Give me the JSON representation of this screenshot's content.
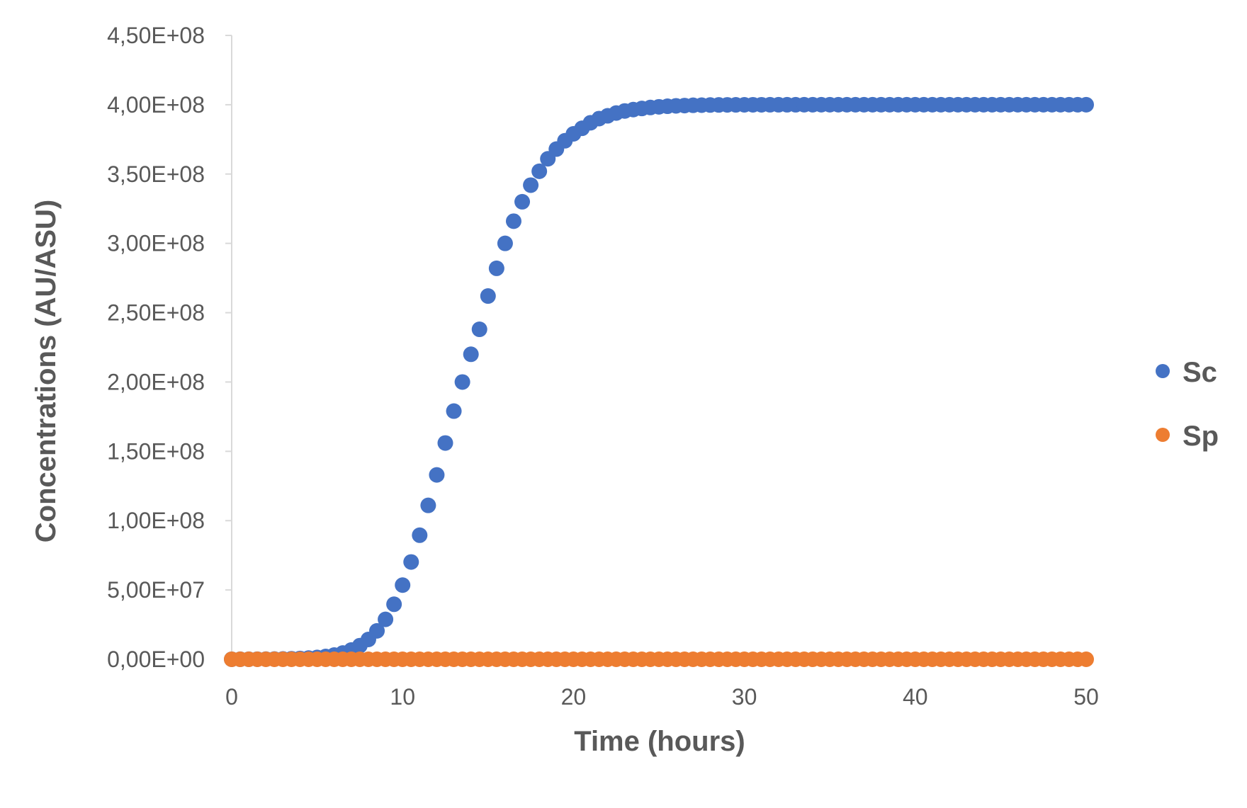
{
  "chart_data": {
    "type": "scatter",
    "title": "",
    "xlabel": "Time (hours)",
    "ylabel": "Concentrations (AU/ASU)",
    "xlim": [
      0,
      50
    ],
    "ylim": [
      0,
      450000000
    ],
    "x_ticks": [
      0,
      10,
      20,
      30,
      40,
      50
    ],
    "x_tick_labels": [
      "0",
      "10",
      "20",
      "30",
      "40",
      "50"
    ],
    "y_ticks": [
      0,
      50000000,
      100000000,
      150000000,
      200000000,
      250000000,
      300000000,
      350000000,
      400000000,
      450000000
    ],
    "y_tick_labels": [
      "0,00E+00",
      "5,00E+07",
      "1,00E+08",
      "1,50E+08",
      "2,00E+08",
      "2,50E+08",
      "3,00E+08",
      "3,50E+08",
      "4,00E+08",
      "4,50E+08"
    ],
    "grid": false,
    "legend_position": "right",
    "series": [
      {
        "name": "Sc",
        "color": "#4472C4",
        "x": [
          0.0,
          0.5,
          1.0,
          1.5,
          2.0,
          2.5,
          3.0,
          3.5,
          4.0,
          4.5,
          5.0,
          5.5,
          6.0,
          6.5,
          7.0,
          7.5,
          8.0,
          8.5,
          9.0,
          9.5,
          10.0,
          10.5,
          11.0,
          11.5,
          12.0,
          12.5,
          13.0,
          13.5,
          14.0,
          14.5,
          15.0,
          15.5,
          16.0,
          16.5,
          17.0,
          17.5,
          18.0,
          18.5,
          19.0,
          19.5,
          20.0,
          20.5,
          21.0,
          21.5,
          22.0,
          22.5,
          23.0,
          23.5,
          24.0,
          24.5,
          25.0,
          25.5,
          26.0,
          26.5,
          27.0,
          27.5,
          28.0,
          28.5,
          29.0,
          29.5,
          30.0,
          30.5,
          31.0,
          31.5,
          32.0,
          32.5,
          33.0,
          33.5,
          34.0,
          34.5,
          35.0,
          35.5,
          36.0,
          36.5,
          37.0,
          37.5,
          38.0,
          38.5,
          39.0,
          39.5,
          40.0,
          40.5,
          41.0,
          41.5,
          42.0,
          42.5,
          43.0,
          43.5,
          44.0,
          44.5,
          45.0,
          45.5,
          46.0,
          46.5,
          47.0,
          47.5,
          48.0,
          48.5,
          49.0,
          49.5,
          50.0
        ],
        "y": [
          23000,
          34000,
          51000,
          78000,
          117000,
          176000,
          265000,
          399000,
          600000,
          902000,
          1350000,
          2030000,
          3040000,
          4530000,
          6710000,
          9860000,
          14300000,
          20500000,
          28800000,
          39700000,
          53500000,
          70200000,
          89500000,
          111000000,
          133000000,
          156000000,
          179000000,
          200000000,
          220000000,
          238000000,
          262000000,
          282000000,
          300000000,
          316000000,
          330000000,
          342000000,
          352000000,
          361000000,
          368000000,
          374000000,
          379000000,
          383000000,
          387000000,
          390000000,
          392000000,
          394000000,
          395500000,
          396500000,
          397300000,
          398000000,
          398500000,
          398900000,
          399200000,
          399400000,
          399600000,
          399700000,
          399800000,
          399850000,
          399900000,
          399930000,
          399950000,
          399965000,
          399975000,
          399982000,
          399987000,
          399990000,
          399993000,
          399995000,
          399996000,
          399997000,
          399998000,
          399998000,
          399999000,
          399999000,
          399999000,
          400000000,
          400000000,
          400000000,
          400000000,
          400000000,
          400000000,
          400000000,
          400000000,
          400000000,
          400000000,
          400000000,
          400000000,
          400000000,
          400000000,
          400000000,
          400000000,
          400000000,
          400000000,
          400000000,
          400000000,
          400000000,
          400000000,
          400000000,
          400000000,
          400000000,
          400000000
        ]
      },
      {
        "name": "Sp",
        "color": "#ED7D31",
        "x": [
          0.0,
          0.5,
          1.0,
          1.5,
          2.0,
          2.5,
          3.0,
          3.5,
          4.0,
          4.5,
          5.0,
          5.5,
          6.0,
          6.5,
          7.0,
          7.5,
          8.0,
          8.5,
          9.0,
          9.5,
          10.0,
          10.5,
          11.0,
          11.5,
          12.0,
          12.5,
          13.0,
          13.5,
          14.0,
          14.5,
          15.0,
          15.5,
          16.0,
          16.5,
          17.0,
          17.5,
          18.0,
          18.5,
          19.0,
          19.5,
          20.0,
          20.5,
          21.0,
          21.5,
          22.0,
          22.5,
          23.0,
          23.5,
          24.0,
          24.5,
          25.0,
          25.5,
          26.0,
          26.5,
          27.0,
          27.5,
          28.0,
          28.5,
          29.0,
          29.5,
          30.0,
          30.5,
          31.0,
          31.5,
          32.0,
          32.5,
          33.0,
          33.5,
          34.0,
          34.5,
          35.0,
          35.5,
          36.0,
          36.5,
          37.0,
          37.5,
          38.0,
          38.5,
          39.0,
          39.5,
          40.0,
          40.5,
          41.0,
          41.5,
          42.0,
          42.5,
          43.0,
          43.5,
          44.0,
          44.5,
          45.0,
          45.5,
          46.0,
          46.5,
          47.0,
          47.5,
          48.0,
          48.5,
          49.0,
          49.5,
          50.0
        ],
        "y": [
          0,
          0,
          0,
          0,
          0,
          0,
          0,
          0,
          0,
          0,
          0,
          0,
          0,
          0,
          0,
          0,
          0,
          0,
          0,
          0,
          0,
          0,
          0,
          0,
          0,
          0,
          0,
          0,
          0,
          0,
          0,
          0,
          0,
          0,
          0,
          0,
          0,
          0,
          0,
          0,
          0,
          0,
          0,
          0,
          0,
          0,
          0,
          0,
          0,
          0,
          0,
          0,
          0,
          0,
          0,
          0,
          0,
          0,
          0,
          0,
          0,
          0,
          0,
          0,
          0,
          0,
          0,
          0,
          0,
          0,
          0,
          0,
          0,
          0,
          0,
          0,
          0,
          0,
          0,
          0,
          0,
          0,
          0,
          0,
          0,
          0,
          0,
          0,
          0,
          0,
          0,
          0,
          0,
          0,
          0,
          0,
          0,
          0,
          0,
          0,
          0
        ]
      }
    ]
  }
}
